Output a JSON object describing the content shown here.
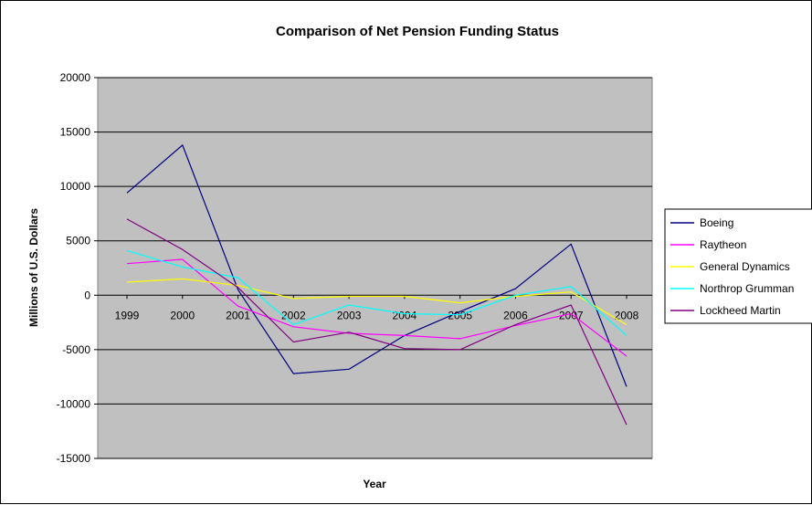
{
  "chart_data": {
    "type": "line",
    "title": "Comparison of Net Pension Funding Status",
    "xlabel": "Year",
    "ylabel": "Millions of U.S. Dollars",
    "categories": [
      "1999",
      "2000",
      "2001",
      "2002",
      "2003",
      "2004",
      "2005",
      "2006",
      "2007",
      "2008"
    ],
    "ylim": [
      -15000,
      20000
    ],
    "yticks": [
      "20000",
      "15000",
      "10000",
      "5000",
      "0",
      "-5000",
      "-10000",
      "-15000"
    ],
    "grid": true,
    "legend_position": "right",
    "plot_background": "#c0c0c0",
    "series": [
      {
        "name": "Boeing",
        "color": "#000080",
        "values": [
          9400,
          13800,
          500,
          -7200,
          -6800,
          -3700,
          -1500,
          600,
          4700,
          -8400
        ]
      },
      {
        "name": "Raytheon",
        "color": "#ff00ff",
        "values": [
          2900,
          3300,
          -1000,
          -2900,
          -3500,
          -3700,
          -4000,
          -2800,
          -1700,
          -5600
        ]
      },
      {
        "name": "General Dynamics",
        "color": "#ffff00",
        "values": [
          1200,
          1500,
          900,
          -300,
          -100,
          -100,
          -700,
          -100,
          300,
          -2700
        ]
      },
      {
        "name": "Northrop Grumman",
        "color": "#00ffff",
        "values": [
          4100,
          2600,
          1600,
          -2700,
          -900,
          -1700,
          -1800,
          0,
          800,
          -3700
        ]
      },
      {
        "name": "Lockheed Martin",
        "color": "#800080",
        "values": [
          7000,
          4200,
          700,
          -4300,
          -3400,
          -4900,
          -5000,
          -2700,
          -900,
          -11900
        ]
      }
    ]
  }
}
